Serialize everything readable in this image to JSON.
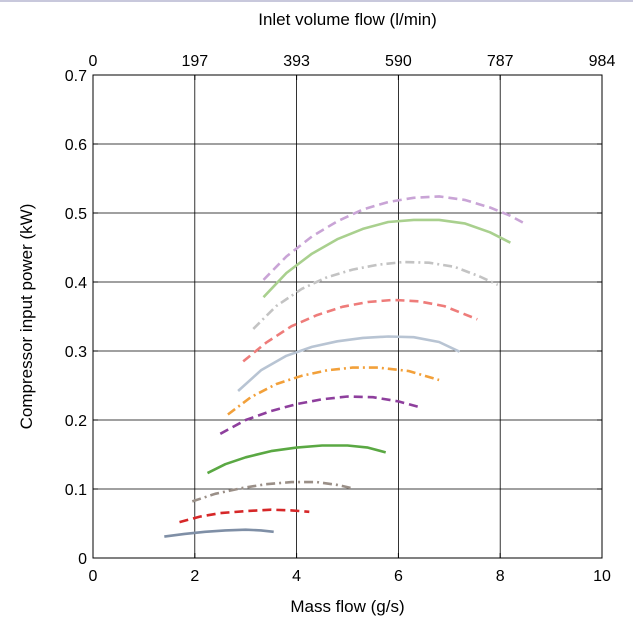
{
  "chart_data": {
    "type": "line",
    "title": "",
    "xlabel": "Mass flow (g/s)",
    "ylabel": "Compressor input power (kW)",
    "x2label": "Inlet volume flow (l/min)",
    "xlim": [
      0,
      10
    ],
    "ylim": [
      0,
      0.7
    ],
    "x_ticks": [
      0,
      2,
      4,
      6,
      8,
      10
    ],
    "x_tick_labels": [
      "0",
      "2",
      "4",
      "6",
      "8",
      "10"
    ],
    "y_ticks": [
      0,
      0.1,
      0.2,
      0.3,
      0.4,
      0.5,
      0.6,
      0.7
    ],
    "y_tick_labels": [
      "0",
      "0.1",
      "0.2",
      "0.3",
      "0.4",
      "0.5",
      "0.6",
      "0.7"
    ],
    "x2_ticks": [
      0,
      2,
      4,
      6,
      8,
      10
    ],
    "x2_tick_labels": [
      "0",
      "197",
      "393",
      "590",
      "787",
      "984"
    ],
    "grid": true,
    "series": [
      {
        "color": "#7f8fa6",
        "dash": "solid",
        "x": [
          1.4,
          1.8,
          2.2,
          2.6,
          3.0,
          3.3,
          3.55
        ],
        "y": [
          0.031,
          0.035,
          0.038,
          0.04,
          0.041,
          0.04,
          0.038
        ]
      },
      {
        "color": "#d62728",
        "dash": "dashed",
        "x": [
          1.7,
          2.1,
          2.5,
          3.0,
          3.5,
          3.9,
          4.25
        ],
        "y": [
          0.052,
          0.06,
          0.065,
          0.068,
          0.07,
          0.069,
          0.067
        ]
      },
      {
        "color": "#9a8f87",
        "dash": "dashdot",
        "x": [
          1.95,
          2.4,
          2.9,
          3.4,
          3.9,
          4.4,
          4.8,
          5.1
        ],
        "y": [
          0.082,
          0.093,
          0.101,
          0.107,
          0.11,
          0.11,
          0.106,
          0.101
        ]
      },
      {
        "color": "#5aa843",
        "dash": "solid",
        "x": [
          2.25,
          2.6,
          3.0,
          3.5,
          4.0,
          4.5,
          5.0,
          5.4,
          5.75
        ],
        "y": [
          0.123,
          0.136,
          0.146,
          0.155,
          0.16,
          0.163,
          0.163,
          0.16,
          0.153
        ]
      },
      {
        "color": "#8e3f9d",
        "dash": "dashed",
        "x": [
          2.5,
          3.0,
          3.5,
          4.0,
          4.5,
          5.0,
          5.5,
          6.0,
          6.45
        ],
        "y": [
          0.18,
          0.2,
          0.213,
          0.223,
          0.23,
          0.234,
          0.233,
          0.227,
          0.218
        ]
      },
      {
        "color": "#f2a03a",
        "dash": "dashdot",
        "x": [
          2.65,
          3.1,
          3.6,
          4.1,
          4.6,
          5.1,
          5.6,
          6.2,
          6.8
        ],
        "y": [
          0.208,
          0.233,
          0.252,
          0.264,
          0.272,
          0.276,
          0.276,
          0.271,
          0.258
        ]
      },
      {
        "color": "#b8c4d3",
        "dash": "solid",
        "x": [
          2.85,
          3.3,
          3.8,
          4.3,
          4.8,
          5.3,
          5.8,
          6.3,
          6.8,
          7.2
        ],
        "y": [
          0.242,
          0.272,
          0.293,
          0.306,
          0.314,
          0.319,
          0.321,
          0.32,
          0.313,
          0.299
        ]
      },
      {
        "color": "#ee7c7a",
        "dash": "dashed",
        "x": [
          2.95,
          3.4,
          3.9,
          4.4,
          4.9,
          5.4,
          5.9,
          6.4,
          6.9,
          7.55
        ],
        "y": [
          0.285,
          0.312,
          0.336,
          0.352,
          0.364,
          0.371,
          0.374,
          0.372,
          0.365,
          0.346
        ]
      },
      {
        "color": "#c3c3c3",
        "dash": "dashdot",
        "x": [
          3.15,
          3.6,
          4.1,
          4.6,
          5.1,
          5.6,
          6.1,
          6.6,
          7.1,
          7.6,
          7.95
        ],
        "y": [
          0.332,
          0.365,
          0.39,
          0.407,
          0.418,
          0.425,
          0.429,
          0.428,
          0.422,
          0.408,
          0.396
        ]
      },
      {
        "color": "#a9d08e",
        "dash": "solid",
        "x": [
          3.35,
          3.8,
          4.3,
          4.8,
          5.3,
          5.8,
          6.3,
          6.8,
          7.3,
          7.8,
          8.2
        ],
        "y": [
          0.378,
          0.413,
          0.441,
          0.462,
          0.477,
          0.487,
          0.49,
          0.49,
          0.485,
          0.472,
          0.457
        ]
      },
      {
        "color": "#c9a4d6",
        "dash": "dashed",
        "x": [
          3.35,
          3.8,
          4.3,
          4.8,
          5.3,
          5.8,
          6.3,
          6.8,
          7.3,
          7.8,
          8.2,
          8.45
        ],
        "y": [
          0.403,
          0.437,
          0.466,
          0.488,
          0.505,
          0.516,
          0.522,
          0.524,
          0.519,
          0.508,
          0.496,
          0.486
        ]
      }
    ]
  }
}
